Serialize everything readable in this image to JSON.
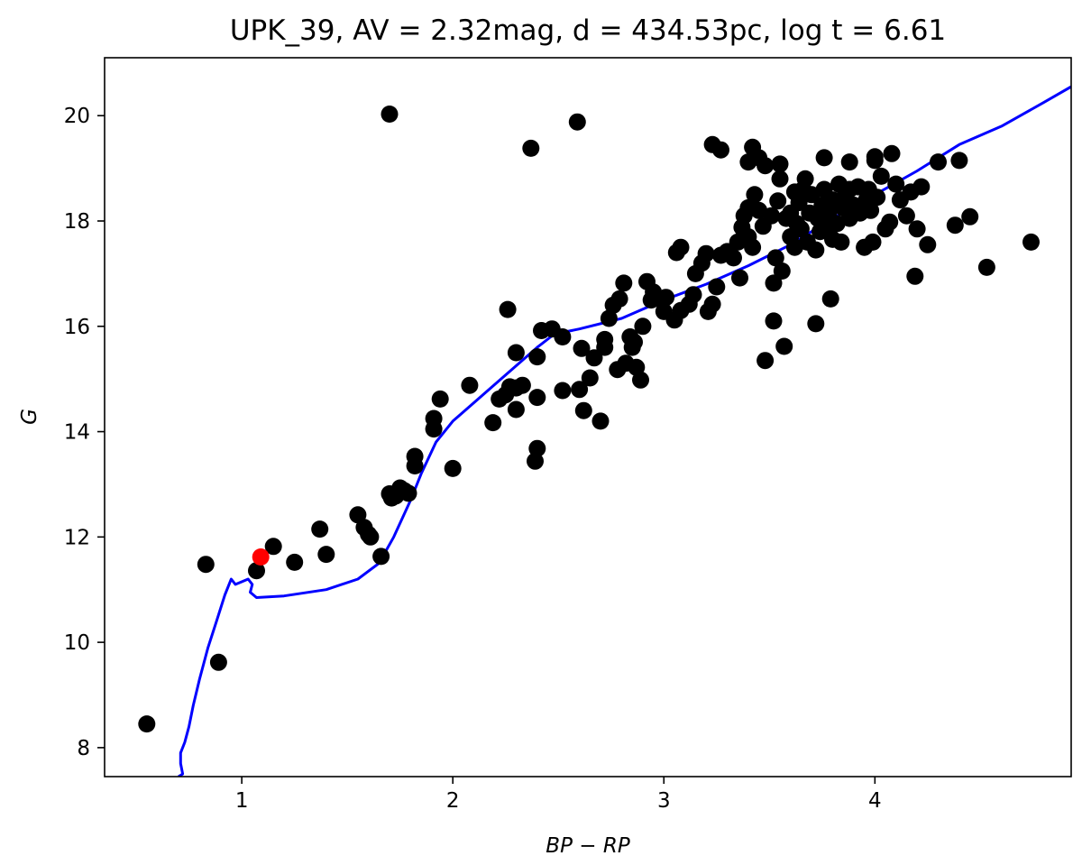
{
  "chart_data": {
    "type": "scatter",
    "title": "UPK_39, AV = 2.32mag, d = 434.53pc, log t = 6.61",
    "xlabel": "BP − RP",
    "ylabel": "G",
    "xlim": [
      0.35,
      4.93
    ],
    "ylim": [
      21.1,
      7.45
    ],
    "y_inverted": true,
    "xticks": [
      1,
      2,
      3,
      4
    ],
    "yticks": [
      8,
      10,
      12,
      14,
      16,
      18,
      20
    ],
    "grid": false,
    "colors": {
      "members": "#000000",
      "highlight": "#ff0000",
      "isochrone": "#0000ff"
    },
    "highlight": {
      "x": 1.09,
      "y": 11.62
    },
    "isochrone": [
      [
        0.7,
        7.45
      ],
      [
        0.72,
        7.5
      ],
      [
        0.71,
        7.7
      ],
      [
        0.71,
        7.9
      ],
      [
        0.73,
        8.1
      ],
      [
        0.75,
        8.4
      ],
      [
        0.77,
        8.8
      ],
      [
        0.8,
        9.3
      ],
      [
        0.84,
        9.9
      ],
      [
        0.88,
        10.4
      ],
      [
        0.92,
        10.9
      ],
      [
        0.95,
        11.2
      ],
      [
        0.97,
        11.1
      ],
      [
        1.0,
        11.15
      ],
      [
        1.03,
        11.2
      ],
      [
        1.05,
        11.1
      ],
      [
        1.04,
        10.95
      ],
      [
        1.07,
        10.85
      ],
      [
        1.2,
        10.88
      ],
      [
        1.4,
        11.0
      ],
      [
        1.55,
        11.2
      ],
      [
        1.65,
        11.5
      ],
      [
        1.72,
        12.0
      ],
      [
        1.8,
        12.7
      ],
      [
        1.85,
        13.2
      ],
      [
        1.92,
        13.8
      ],
      [
        2.0,
        14.2
      ],
      [
        2.2,
        14.9
      ],
      [
        2.4,
        15.6
      ],
      [
        2.48,
        15.85
      ],
      [
        2.6,
        15.95
      ],
      [
        2.8,
        16.15
      ],
      [
        3.0,
        16.5
      ],
      [
        3.2,
        16.8
      ],
      [
        3.4,
        17.15
      ],
      [
        3.6,
        17.55
      ],
      [
        3.8,
        18.05
      ],
      [
        4.0,
        18.5
      ],
      [
        4.2,
        18.95
      ],
      [
        4.4,
        19.45
      ],
      [
        4.6,
        19.8
      ],
      [
        4.8,
        20.25
      ],
      [
        4.93,
        20.55
      ]
    ],
    "points": [
      [
        0.55,
        8.45
      ],
      [
        0.89,
        9.62
      ],
      [
        0.83,
        11.48
      ],
      [
        1.07,
        11.36
      ],
      [
        1.15,
        11.82
      ],
      [
        1.25,
        11.52
      ],
      [
        1.37,
        12.15
      ],
      [
        1.4,
        11.67
      ],
      [
        1.55,
        12.42
      ],
      [
        1.58,
        12.18
      ],
      [
        1.6,
        12.05
      ],
      [
        1.61,
        12.0
      ],
      [
        1.66,
        11.63
      ],
      [
        1.7,
        12.82
      ],
      [
        1.71,
        12.74
      ],
      [
        1.73,
        12.78
      ],
      [
        1.75,
        12.93
      ],
      [
        1.77,
        12.88
      ],
      [
        1.79,
        12.83
      ],
      [
        1.82,
        13.35
      ],
      [
        1.82,
        13.53
      ],
      [
        2.0,
        13.3
      ],
      [
        1.91,
        14.05
      ],
      [
        1.91,
        14.25
      ],
      [
        1.94,
        14.62
      ],
      [
        2.08,
        14.88
      ],
      [
        2.19,
        14.17
      ],
      [
        2.22,
        14.62
      ],
      [
        2.25,
        14.7
      ],
      [
        2.27,
        14.85
      ],
      [
        2.3,
        14.83
      ],
      [
        2.3,
        14.42
      ],
      [
        2.33,
        14.88
      ],
      [
        2.39,
        13.44
      ],
      [
        2.4,
        13.68
      ],
      [
        2.4,
        14.65
      ],
      [
        2.4,
        15.42
      ],
      [
        2.3,
        15.5
      ],
      [
        2.26,
        16.32
      ],
      [
        2.42,
        15.92
      ],
      [
        2.47,
        15.95
      ],
      [
        2.52,
        14.78
      ],
      [
        2.52,
        15.8
      ],
      [
        2.6,
        14.8
      ],
      [
        2.62,
        14.4
      ],
      [
        2.61,
        15.58
      ],
      [
        2.65,
        15.02
      ],
      [
        2.7,
        14.2
      ],
      [
        2.67,
        15.4
      ],
      [
        2.72,
        15.6
      ],
      [
        2.72,
        15.75
      ],
      [
        2.74,
        16.15
      ],
      [
        2.76,
        16.4
      ],
      [
        2.79,
        16.52
      ],
      [
        2.81,
        16.82
      ],
      [
        2.78,
        15.18
      ],
      [
        2.82,
        15.3
      ],
      [
        2.85,
        15.6
      ],
      [
        2.84,
        15.8
      ],
      [
        2.86,
        15.7
      ],
      [
        2.87,
        15.22
      ],
      [
        2.89,
        14.98
      ],
      [
        2.9,
        16.0
      ],
      [
        2.92,
        16.85
      ],
      [
        2.94,
        16.5
      ],
      [
        2.95,
        16.65
      ],
      [
        2.98,
        16.52
      ],
      [
        3.0,
        16.28
      ],
      [
        3.01,
        16.55
      ],
      [
        3.05,
        16.12
      ],
      [
        3.06,
        17.4
      ],
      [
        3.08,
        17.5
      ],
      [
        3.08,
        16.3
      ],
      [
        3.12,
        16.42
      ],
      [
        3.14,
        16.6
      ],
      [
        3.15,
        17.0
      ],
      [
        3.18,
        17.2
      ],
      [
        3.2,
        17.38
      ],
      [
        3.21,
        16.28
      ],
      [
        3.23,
        16.42
      ],
      [
        3.25,
        16.75
      ],
      [
        3.27,
        17.35
      ],
      [
        3.3,
        17.42
      ],
      [
        3.33,
        17.3
      ],
      [
        3.35,
        17.6
      ],
      [
        3.36,
        16.92
      ],
      [
        3.37,
        17.88
      ],
      [
        3.38,
        18.1
      ],
      [
        3.4,
        17.7
      ],
      [
        3.4,
        18.25
      ],
      [
        3.42,
        17.5
      ],
      [
        3.43,
        18.5
      ],
      [
        3.45,
        18.2
      ],
      [
        3.47,
        17.9
      ],
      [
        3.48,
        15.35
      ],
      [
        3.51,
        18.1
      ],
      [
        3.52,
        16.1
      ],
      [
        3.52,
        16.82
      ],
      [
        3.53,
        17.3
      ],
      [
        3.54,
        18.38
      ],
      [
        3.55,
        18.8
      ],
      [
        3.56,
        17.05
      ],
      [
        3.57,
        15.62
      ],
      [
        3.58,
        18.05
      ],
      [
        3.6,
        18.15
      ],
      [
        3.6,
        17.7
      ],
      [
        3.62,
        18.55
      ],
      [
        3.62,
        17.5
      ],
      [
        3.63,
        17.95
      ],
      [
        3.64,
        18.35
      ],
      [
        3.65,
        17.85
      ],
      [
        3.66,
        18.6
      ],
      [
        3.67,
        18.8
      ],
      [
        3.68,
        17.6
      ],
      [
        3.69,
        18.15
      ],
      [
        3.7,
        18.5
      ],
      [
        3.72,
        17.45
      ],
      [
        3.72,
        16.05
      ],
      [
        3.73,
        18.05
      ],
      [
        3.74,
        17.8
      ],
      [
        3.75,
        18.3
      ],
      [
        3.76,
        18.6
      ],
      [
        3.77,
        17.9
      ],
      [
        3.78,
        18.15
      ],
      [
        3.79,
        16.52
      ],
      [
        3.8,
        18.4
      ],
      [
        3.8,
        17.65
      ],
      [
        3.82,
        17.95
      ],
      [
        3.83,
        18.7
      ],
      [
        3.84,
        17.6
      ],
      [
        3.85,
        18.25
      ],
      [
        3.86,
        18.5
      ],
      [
        3.88,
        18.05
      ],
      [
        3.88,
        18.6
      ],
      [
        3.9,
        18.3
      ],
      [
        3.92,
        18.65
      ],
      [
        3.93,
        18.15
      ],
      [
        3.95,
        17.5
      ],
      [
        3.96,
        18.4
      ],
      [
        3.97,
        18.6
      ],
      [
        3.98,
        18.2
      ],
      [
        3.99,
        17.6
      ],
      [
        4.0,
        19.15
      ],
      [
        4.01,
        18.45
      ],
      [
        4.03,
        18.85
      ],
      [
        4.05,
        17.85
      ],
      [
        4.07,
        17.98
      ],
      [
        4.08,
        19.28
      ],
      [
        4.1,
        18.7
      ],
      [
        4.12,
        18.4
      ],
      [
        4.15,
        18.1
      ],
      [
        4.17,
        18.55
      ],
      [
        4.19,
        16.95
      ],
      [
        4.2,
        17.85
      ],
      [
        4.22,
        18.65
      ],
      [
        4.25,
        17.55
      ],
      [
        4.3,
        19.12
      ],
      [
        4.38,
        17.92
      ],
      [
        4.4,
        19.15
      ],
      [
        4.45,
        18.08
      ],
      [
        4.53,
        17.12
      ],
      [
        4.74,
        17.6
      ],
      [
        3.4,
        19.12
      ],
      [
        3.42,
        19.4
      ],
      [
        3.45,
        19.2
      ],
      [
        3.48,
        19.05
      ],
      [
        3.55,
        19.08
      ],
      [
        3.76,
        19.2
      ],
      [
        3.88,
        19.12
      ],
      [
        4.0,
        19.22
      ],
      [
        3.23,
        19.45
      ],
      [
        3.27,
        19.35
      ],
      [
        2.37,
        19.38
      ],
      [
        2.59,
        19.88
      ],
      [
        1.7,
        20.03
      ]
    ]
  }
}
